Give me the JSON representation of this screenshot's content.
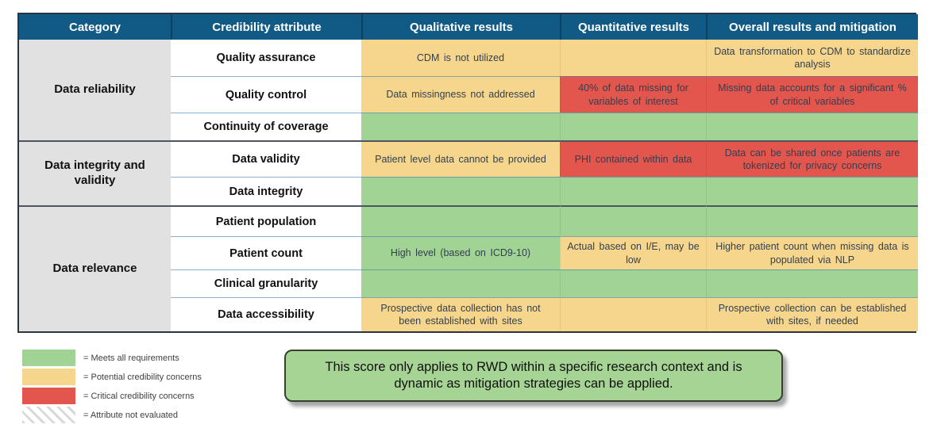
{
  "colors": {
    "header_bg": "#115a85",
    "category_bg": "#e1e1e1",
    "green": "#a1d394",
    "yellow": "#f6d68c",
    "red": "#e2564e",
    "note_bg": "#a6d494",
    "cell_text": "#333f50"
  },
  "table": {
    "columns": [
      "Category",
      "Credibility attribute",
      "Qualitative results",
      "Quantitative results",
      "Overall results and mitigation"
    ],
    "groups": [
      {
        "category": "Data reliability",
        "rows": [
          {
            "attribute": "Quality assurance",
            "qualitative": {
              "text": "CDM is not utilized",
              "status": "yellow"
            },
            "quantitative": {
              "text": "",
              "status": "yellow"
            },
            "overall": {
              "text": "Data transformation to CDM to standardize analysis",
              "status": "yellow"
            }
          },
          {
            "attribute": "Quality control",
            "qualitative": {
              "text": "Data missingness not addressed",
              "status": "yellow"
            },
            "quantitative": {
              "text": "40% of data missing for variables of interest",
              "status": "red"
            },
            "overall": {
              "text": "Missing data accounts for a significant % of critical variables",
              "status": "red"
            }
          },
          {
            "attribute": "Continuity of coverage",
            "qualitative": {
              "text": "",
              "status": "green"
            },
            "quantitative": {
              "text": "",
              "status": "green"
            },
            "overall": {
              "text": "",
              "status": "green"
            }
          }
        ]
      },
      {
        "category": "Data integrity and validity",
        "rows": [
          {
            "attribute": "Data validity",
            "qualitative": {
              "text": "Patient level data cannot be provided",
              "status": "yellow"
            },
            "quantitative": {
              "text": "PHI contained within data",
              "status": "red"
            },
            "overall": {
              "text": "Data can be shared once patients are tokenized for privacy concerns",
              "status": "red"
            }
          },
          {
            "attribute": "Data integrity",
            "qualitative": {
              "text": "",
              "status": "green"
            },
            "quantitative": {
              "text": "",
              "status": "green"
            },
            "overall": {
              "text": "",
              "status": "green"
            }
          }
        ]
      },
      {
        "category": "Data relevance",
        "rows": [
          {
            "attribute": "Patient population",
            "qualitative": {
              "text": "",
              "status": "green"
            },
            "quantitative": {
              "text": "",
              "status": "green"
            },
            "overall": {
              "text": "",
              "status": "green"
            }
          },
          {
            "attribute": "Patient count",
            "qualitative": {
              "text": "High level (based on ICD9-10)",
              "status": "green"
            },
            "quantitative": {
              "text": "Actual based on I/E, may be low",
              "status": "yellow"
            },
            "overall": {
              "text": "Higher patient count when missing data is populated via NLP",
              "status": "yellow"
            }
          },
          {
            "attribute": "Clinical granularity",
            "qualitative": {
              "text": "",
              "status": "green"
            },
            "quantitative": {
              "text": "",
              "status": "green"
            },
            "overall": {
              "text": "",
              "status": "green"
            }
          },
          {
            "attribute": "Data accessibility",
            "qualitative": {
              "text": "Prospective data collection has not been established with sites",
              "status": "yellow"
            },
            "quantitative": {
              "text": "",
              "status": "yellow"
            },
            "overall": {
              "text": "Prospective collection can be established with sites, if needed",
              "status": "yellow"
            }
          }
        ]
      }
    ]
  },
  "legend": {
    "items": [
      {
        "label": "= Meets all requirements",
        "status": "green"
      },
      {
        "label": "= Potential credibility concerns",
        "status": "yellow"
      },
      {
        "label": "= Critical credibility concerns",
        "status": "red"
      },
      {
        "label": "= Attribute not evaluated",
        "status": "hatched"
      }
    ]
  },
  "note": {
    "text": "This score only applies to RWD within a specific research context and is dynamic as mitigation strategies can be applied."
  }
}
